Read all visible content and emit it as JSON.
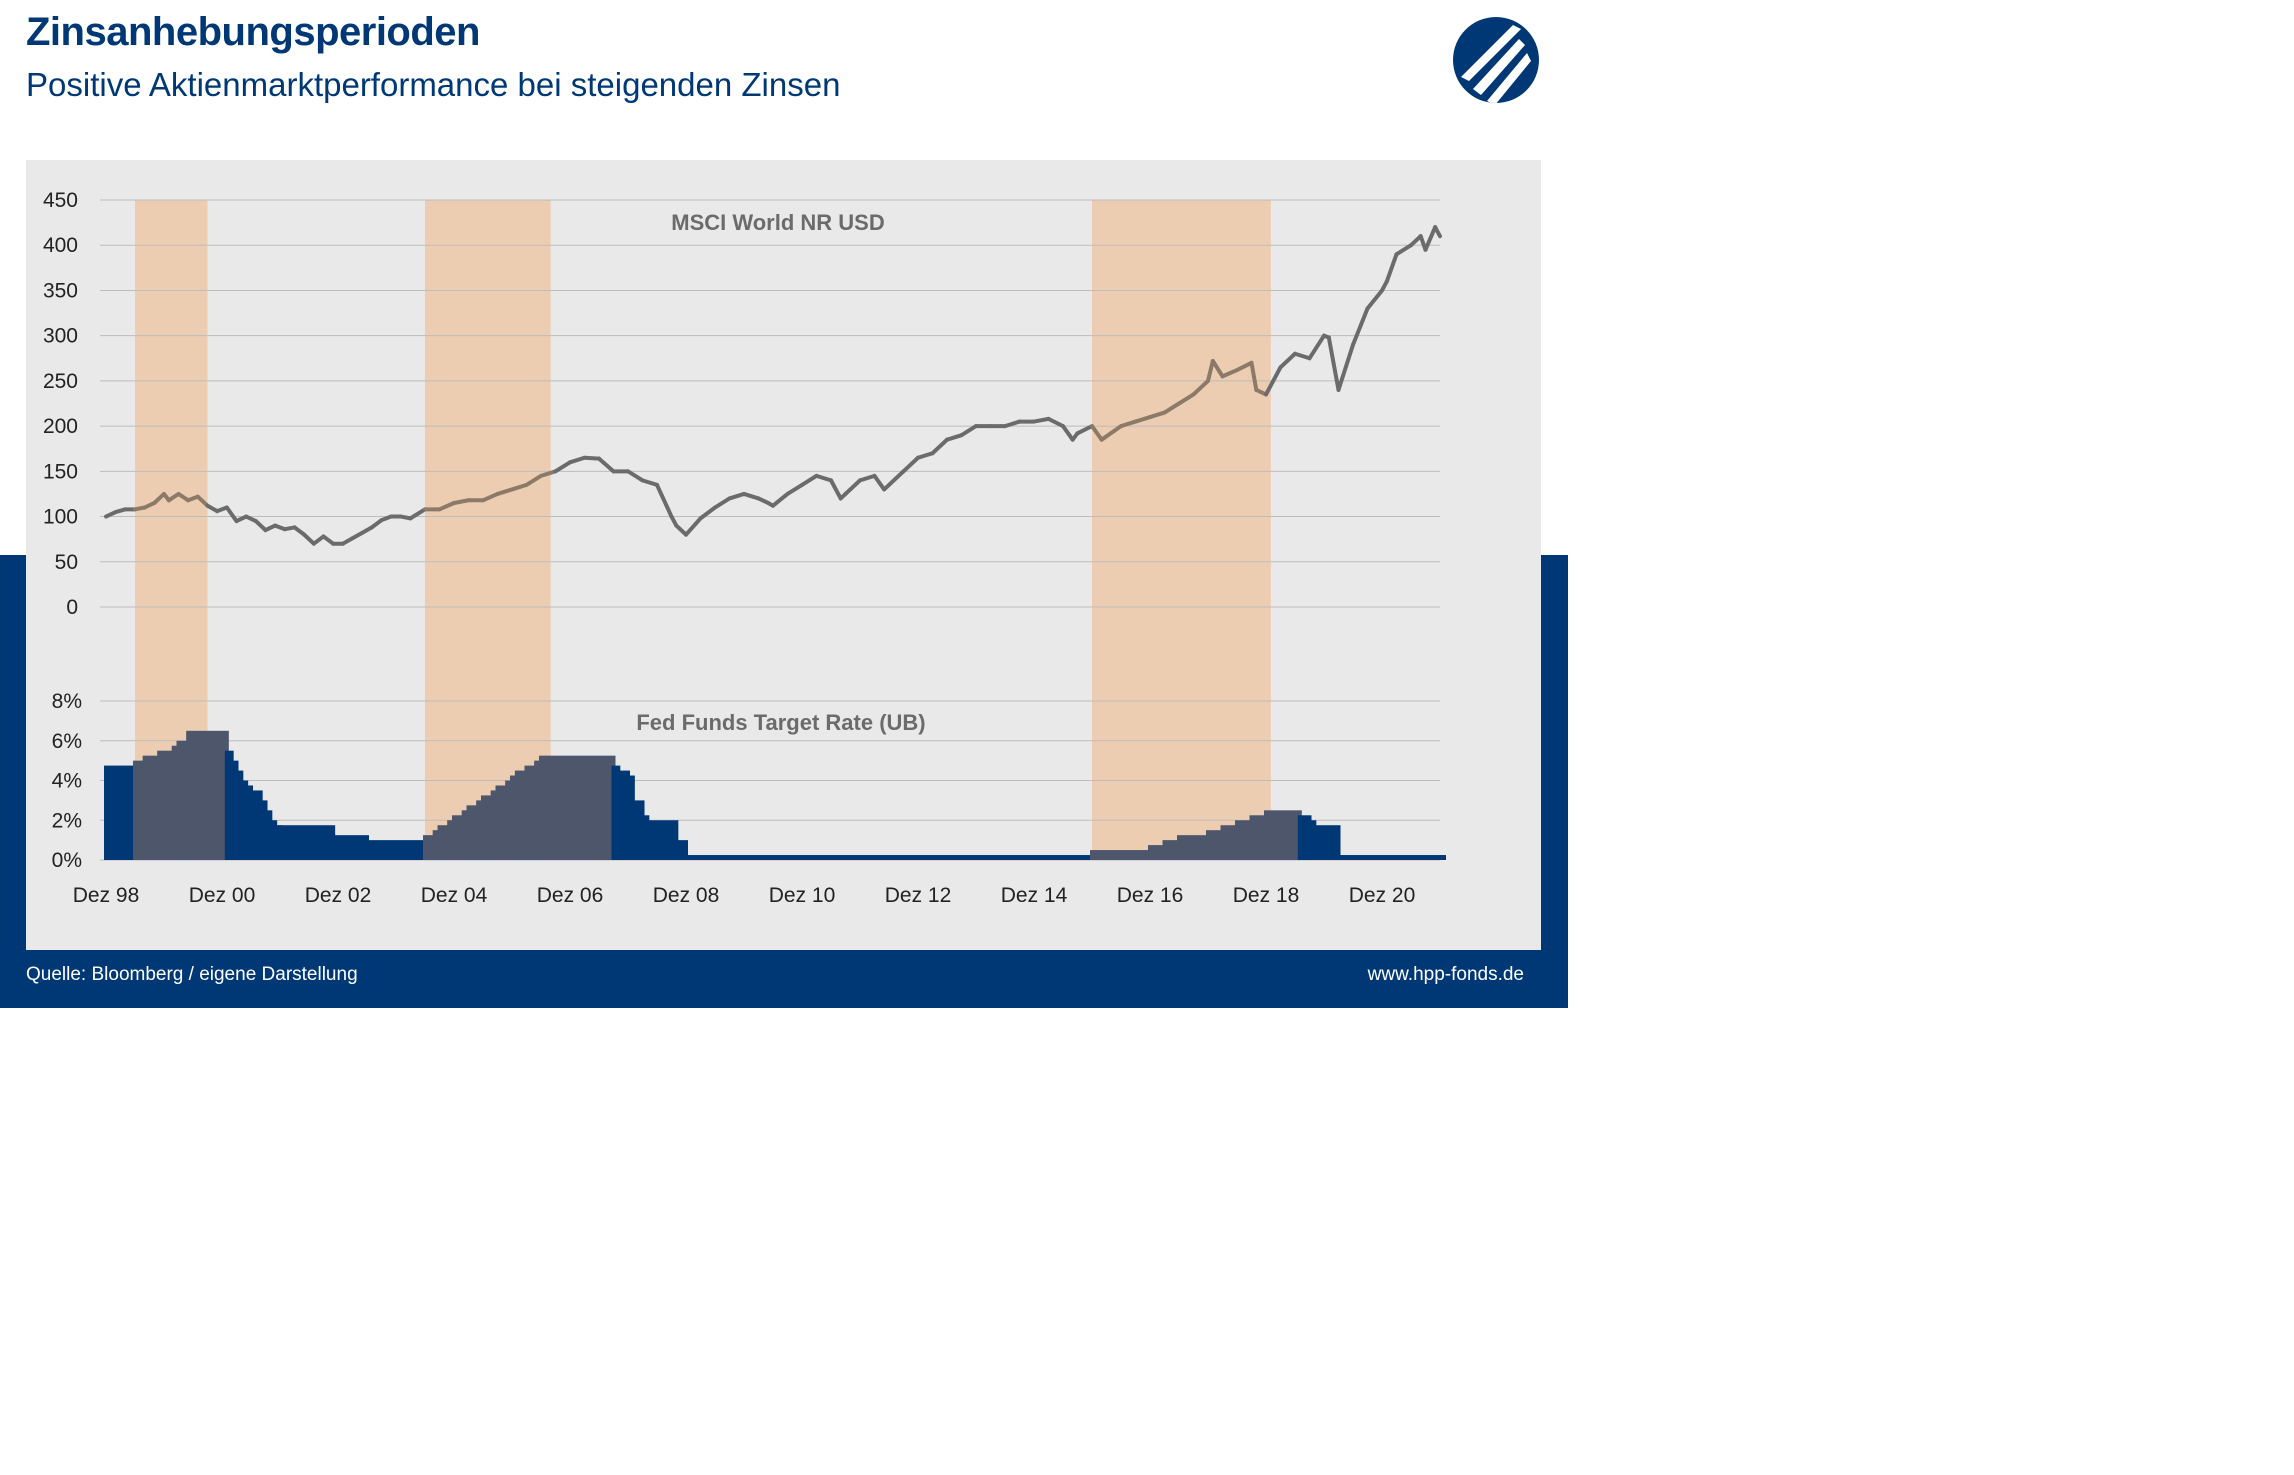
{
  "header": {
    "title": "Zinsanhebungsperioden",
    "subtitle": "Positive Aktienmarktperformance bei steigenden Zinsen"
  },
  "footer": {
    "source": "Quelle: Bloomberg / eigene Darstellung",
    "url": "www.hpp-fonds.de"
  },
  "colors": {
    "brand_blue": "#003876",
    "panel_bg": "#e9e9e9",
    "highlight": "#eccdb2",
    "msci_line": "#6b6b6b",
    "msci_line_in_period": "#8c7a68",
    "fed_in_period": "#4d566b"
  },
  "logo": {
    "icon": "hpp-logo-icon"
  },
  "chart_data": [
    {
      "type": "line",
      "title": "MSCI World NR USD",
      "ylim": [
        0,
        450
      ],
      "yticks": [
        "0",
        "50",
        "100",
        "150",
        "200",
        "250",
        "300",
        "350",
        "400",
        "450"
      ],
      "x_range": [
        "1998-12",
        "2021-12"
      ],
      "xtick_labels": [
        "Dez 98",
        "Dez 00",
        "Dez 02",
        "Dez 04",
        "Dez 06",
        "Dez 08",
        "Dez 10",
        "Dez 12",
        "Dez 14",
        "Dez 16",
        "Dez 18",
        "Dez 20"
      ],
      "highlight_periods": [
        {
          "start": "1999-06",
          "end": "2000-09"
        },
        {
          "start": "2004-06",
          "end": "2006-08"
        },
        {
          "start": "2015-12",
          "end": "2019-01"
        }
      ],
      "grid": true,
      "series": [
        {
          "x": [
            "1998-12",
            "1999-02",
            "1999-04",
            "1999-06",
            "1999-08",
            "1999-10",
            "1999-12",
            "2000-01",
            "2000-03",
            "2000-05",
            "2000-07",
            "2000-09",
            "2000-11",
            "2001-01",
            "2001-03",
            "2001-05",
            "2001-07",
            "2001-09",
            "2001-11",
            "2002-01",
            "2002-03",
            "2002-05",
            "2002-07",
            "2002-09",
            "2002-11",
            "2003-01",
            "2003-03",
            "2003-05",
            "2003-07",
            "2003-09",
            "2003-11",
            "2004-01",
            "2004-03",
            "2004-06",
            "2004-09",
            "2004-12",
            "2005-03",
            "2005-06",
            "2005-09",
            "2005-12",
            "2006-03",
            "2006-06",
            "2006-09",
            "2006-12",
            "2007-03",
            "2007-06",
            "2007-09",
            "2007-12",
            "2008-03",
            "2008-06",
            "2008-09",
            "2008-10",
            "2008-12",
            "2009-02",
            "2009-03",
            "2009-06",
            "2009-09",
            "2009-12",
            "2010-03",
            "2010-05",
            "2010-06",
            "2010-09",
            "2010-12",
            "2011-03",
            "2011-06",
            "2011-08",
            "2011-09",
            "2011-12",
            "2012-03",
            "2012-05",
            "2012-09",
            "2012-12",
            "2013-03",
            "2013-06",
            "2013-09",
            "2013-12",
            "2014-03",
            "2014-06",
            "2014-09",
            "2014-12",
            "2015-03",
            "2015-06",
            "2015-08",
            "2015-09",
            "2015-12",
            "2016-02",
            "2016-06",
            "2016-09",
            "2016-12",
            "2017-03",
            "2017-06",
            "2017-09",
            "2017-12",
            "2018-01",
            "2018-03",
            "2018-06",
            "2018-09",
            "2018-10",
            "2018-12",
            "2019-03",
            "2019-06",
            "2019-09",
            "2019-12",
            "2020-01",
            "2020-03",
            "2020-06",
            "2020-09",
            "2020-12",
            "2021-01",
            "2021-03",
            "2021-06",
            "2021-08",
            "2021-09",
            "2021-11",
            "2021-12"
          ],
          "values": [
            100,
            105,
            108,
            108,
            110,
            115,
            125,
            118,
            125,
            118,
            122,
            112,
            106,
            110,
            95,
            100,
            95,
            85,
            90,
            86,
            88,
            80,
            70,
            78,
            70,
            70,
            76,
            82,
            88,
            96,
            100,
            100,
            98,
            108,
            108,
            115,
            118,
            118,
            125,
            130,
            135,
            145,
            150,
            160,
            165,
            164,
            150,
            150,
            140,
            135,
            100,
            90,
            80,
            92,
            98,
            110,
            120,
            125,
            120,
            115,
            112,
            125,
            135,
            145,
            140,
            120,
            125,
            140,
            145,
            130,
            150,
            165,
            170,
            185,
            190,
            200,
            200,
            200,
            205,
            205,
            208,
            200,
            185,
            192,
            200,
            185,
            200,
            205,
            210,
            215,
            225,
            235,
            250,
            272,
            255,
            262,
            270,
            240,
            235,
            265,
            280,
            275,
            300,
            298,
            240,
            290,
            330,
            350,
            360,
            390,
            400,
            410,
            395,
            420,
            410
          ]
        }
      ]
    },
    {
      "type": "area",
      "title": "Fed Funds Target Rate (UB)",
      "ylim": [
        0,
        8
      ],
      "yticks": [
        "0%",
        "2%",
        "4%",
        "6%",
        "8%"
      ],
      "x_range": [
        "1998-12",
        "2021-12"
      ],
      "step": true,
      "series": [
        {
          "x": [
            "1998-12",
            "1999-06",
            "1999-08",
            "1999-11",
            "2000-02",
            "2000-03",
            "2000-05",
            "2001-01",
            "2001-02",
            "2001-03",
            "2001-04",
            "2001-05",
            "2001-06",
            "2001-08",
            "2001-09",
            "2001-10",
            "2001-11",
            "2001-12",
            "2002-11",
            "2003-06",
            "2004-06",
            "2004-08",
            "2004-09",
            "2004-11",
            "2004-12",
            "2005-02",
            "2005-03",
            "2005-05",
            "2005-06",
            "2005-08",
            "2005-09",
            "2005-11",
            "2005-12",
            "2006-01",
            "2006-03",
            "2006-05",
            "2006-06",
            "2007-09",
            "2007-10",
            "2007-12",
            "2008-01",
            "2008-03",
            "2008-04",
            "2008-10",
            "2008-12",
            "2015-12",
            "2016-12",
            "2017-03",
            "2017-06",
            "2017-12",
            "2018-03",
            "2018-06",
            "2018-09",
            "2018-12",
            "2019-07",
            "2019-09",
            "2019-10",
            "2020-03"
          ],
          "values": [
            4.75,
            5.0,
            5.25,
            5.5,
            5.75,
            6.0,
            6.5,
            5.5,
            5.0,
            4.5,
            4.0,
            3.75,
            3.5,
            3.0,
            2.5,
            2.0,
            1.75,
            1.75,
            1.25,
            1.0,
            1.25,
            1.5,
            1.75,
            2.0,
            2.25,
            2.5,
            2.75,
            3.0,
            3.25,
            3.5,
            3.75,
            4.0,
            4.25,
            4.5,
            4.75,
            5.0,
            5.25,
            4.75,
            4.5,
            4.25,
            3.0,
            2.25,
            2.0,
            1.0,
            0.25,
            0.5,
            0.75,
            1.0,
            1.25,
            1.5,
            1.75,
            2.0,
            2.25,
            2.5,
            2.25,
            2.0,
            1.75,
            0.25
          ]
        }
      ]
    }
  ]
}
